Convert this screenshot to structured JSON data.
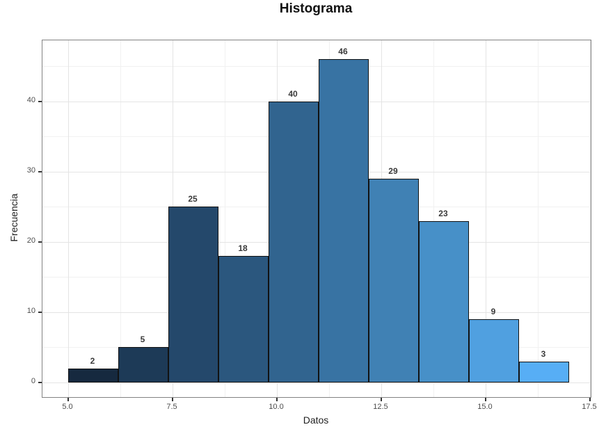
{
  "title": "Histograma",
  "chart_data": {
    "type": "bar",
    "subtype": "histogram",
    "title": "Histograma",
    "xlabel": "Datos",
    "ylabel": "Frecuencia",
    "grid": true,
    "legend": "none",
    "x_domain": [
      4.383,
      17.517
    ],
    "y_domain": [
      -2.08,
      48.71
    ],
    "x_ticks": [
      {
        "value": 5.0,
        "label": "5.0"
      },
      {
        "value": 7.5,
        "label": "7.5"
      },
      {
        "value": 10.0,
        "label": "10.0"
      },
      {
        "value": 12.5,
        "label": "12.5"
      },
      {
        "value": 15.0,
        "label": "15.0"
      },
      {
        "value": 17.5,
        "label": "17.5"
      }
    ],
    "x_minor_gridlines": [
      6.25,
      8.75,
      11.25,
      13.75,
      16.25
    ],
    "y_ticks": [
      {
        "value": 0,
        "label": "0"
      },
      {
        "value": 10,
        "label": "10"
      },
      {
        "value": 20,
        "label": "20"
      },
      {
        "value": 30,
        "label": "30"
      },
      {
        "value": 40,
        "label": "40"
      }
    ],
    "y_minor_gridlines": [
      5,
      15,
      25,
      35,
      45
    ],
    "binwidth": 1.2,
    "bins": [
      {
        "x0": 5.0,
        "x1": 6.2,
        "count": 2,
        "color": "#16293f"
      },
      {
        "x0": 6.2,
        "x1": 7.4,
        "count": 5,
        "color": "#1d3a57"
      },
      {
        "x0": 7.4,
        "x1": 8.6,
        "count": 25,
        "color": "#24486b"
      },
      {
        "x0": 8.6,
        "x1": 9.8,
        "count": 18,
        "color": "#2b577e"
      },
      {
        "x0": 9.8,
        "x1": 11.0,
        "count": 40,
        "color": "#31648f"
      },
      {
        "x0": 11.0,
        "x1": 12.2,
        "count": 46,
        "color": "#3873a3"
      },
      {
        "x0": 12.2,
        "x1": 13.4,
        "count": 29,
        "color": "#4081b4"
      },
      {
        "x0": 13.4,
        "x1": 14.6,
        "count": 23,
        "color": "#4790c8"
      },
      {
        "x0": 14.6,
        "x1": 15.8,
        "count": 9,
        "color": "#50a0e0"
      },
      {
        "x0": 15.8,
        "x1": 17.0,
        "count": 3,
        "color": "#57aef5"
      }
    ],
    "colors": {
      "bar_border": "#121212",
      "panel_border": "#828282",
      "grid_major": "#e4e4e4",
      "grid_minor": "#f1f1f1",
      "tick": "#333333",
      "tick_label": "#4d4d4d",
      "axis_title": "#1f1f1f",
      "value_label": "#3a3a3a",
      "title": "#111111",
      "background": "#ffffff"
    }
  }
}
